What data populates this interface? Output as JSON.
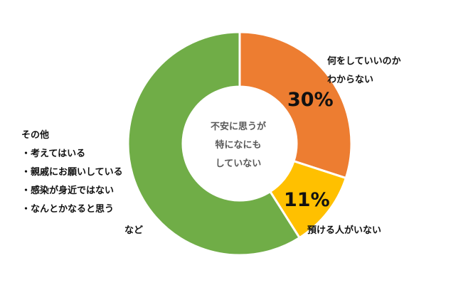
{
  "chart_data": {
    "type": "pie",
    "center_label": [
      "不安に思うが",
      "特になにも",
      "していない"
    ],
    "slices": [
      {
        "label": "何をしていいのかわからない",
        "label_lines": [
          "何をしていいのか",
          "わからない"
        ],
        "value": 30,
        "value_label": "30%",
        "color": "#ED7D31"
      },
      {
        "label": "預ける人がいない",
        "label_lines": [
          "預ける人がいない"
        ],
        "value": 11,
        "value_label": "11%",
        "color": "#FFC000"
      },
      {
        "label": "その他",
        "label_lines": [
          "その他",
          "・考えてはいる",
          "・親戚にお願いしている",
          "・感染が身近ではない",
          "・なんとかなると思う",
          "など"
        ],
        "value": 59,
        "value_label": "",
        "color": "#70AD47"
      }
    ]
  }
}
